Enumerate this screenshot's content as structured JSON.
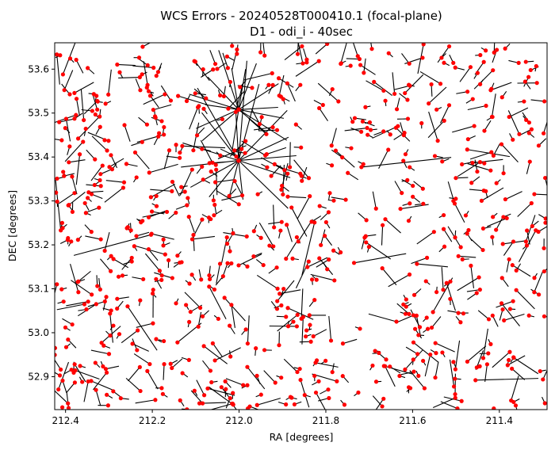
{
  "chart_data": {
    "type": "scatter",
    "title": "WCS Errors - 20240528T000410.1 (focal-plane)",
    "subtitle": "D1 - odi_i - 40sec",
    "xlabel": "RA [degrees]",
    "ylabel": "DEC [degrees]",
    "x_inverted": true,
    "xlim": [
      212.425,
      211.29
    ],
    "ylim": [
      52.825,
      53.66
    ],
    "x_ticks": [
      212.4,
      212.2,
      212.0,
      211.8,
      211.6,
      211.4
    ],
    "x_tick_labels": [
      "212.4",
      "212.2",
      "212.0",
      "211.8",
      "211.6",
      "211.4"
    ],
    "y_ticks": [
      52.9,
      53.0,
      53.1,
      53.2,
      53.3,
      53.4,
      53.5,
      53.6
    ],
    "y_tick_labels": [
      "52.9",
      "53.0",
      "53.1",
      "53.2",
      "53.3",
      "53.4",
      "53.5",
      "53.6"
    ],
    "grid": false,
    "legend": "none",
    "colors": {
      "points": "#ff0000",
      "vectors": "#000000"
    },
    "note_points": "each point = source position (red dot) with a black error vector drawn from it",
    "vectors": [
      {
        "ra": 212.001,
        "dec": 53.392,
        "dra": 0.085,
        "ddec": 0.109
      },
      {
        "ra": 212.001,
        "dec": 53.392,
        "dra": 0.068,
        "ddec": -0.083
      },
      {
        "ra": 212.001,
        "dec": 53.392,
        "dra": -0.114,
        "ddec": -0.109
      },
      {
        "ra": 212.001,
        "dec": 53.392,
        "dra": 0.129,
        "ddec": 0.04
      },
      {
        "ra": 212.001,
        "dec": 53.392,
        "dra": -0.133,
        "ddec": 0.011
      },
      {
        "ra": 212.001,
        "dec": 53.392,
        "dra": -0.047,
        "ddec": 0.174
      },
      {
        "ra": 212.001,
        "dec": 53.392,
        "dra": -0.01,
        "ddec": -0.089
      },
      {
        "ra": 212.001,
        "dec": 53.392,
        "dra": 0.111,
        "ddec": -0.061
      },
      {
        "ra": 212.001,
        "dec": 53.392,
        "dra": -0.119,
        "ddec": -0.039
      },
      {
        "ra": 212.001,
        "dec": 53.392,
        "dra": 0.007,
        "ddec": 0.119
      },
      {
        "ra": 212.001,
        "dec": 53.392,
        "dra": 0.133,
        "ddec": -0.015
      },
      {
        "ra": 212.001,
        "dec": 53.392,
        "dra": -0.019,
        "ddec": 0.227
      },
      {
        "ra": 212.001,
        "dec": 53.392,
        "dra": 0.095,
        "ddec": 0.165
      },
      {
        "ra": 212.001,
        "dec": 53.392,
        "dra": 0.021,
        "ddec": -0.08
      },
      {
        "ra": 212.001,
        "dec": 53.392,
        "dra": -0.115,
        "ddec": 0.053
      },
      {
        "ra": 212.001,
        "dec": 53.392,
        "dra": -0.112,
        "ddec": 0.114
      },
      {
        "ra": 212.001,
        "dec": 53.508,
        "dra": 0.046,
        "ddec": 0.135
      },
      {
        "ra": 212.001,
        "dec": 53.508,
        "dra": -0.091,
        "ddec": 0.005
      },
      {
        "ra": 212.001,
        "dec": 53.508,
        "dra": 0.098,
        "ddec": -0.043
      },
      {
        "ra": 212.001,
        "dec": 53.508,
        "dra": -0.111,
        "ddec": -0.07
      },
      {
        "ra": 212.001,
        "dec": 53.508,
        "dra": 0.071,
        "ddec": 0.074
      },
      {
        "ra": 212.001,
        "dec": 53.508,
        "dra": -0.041,
        "ddec": 0.105
      },
      {
        "ra": 212.001,
        "dec": 53.508,
        "dra": -0.092,
        "ddec": 0.059
      },
      {
        "ra": 212.001,
        "dec": 53.508,
        "dra": 0.084,
        "ddec": -0.071
      },
      {
        "ra": 212.001,
        "dec": 53.508,
        "dra": -0.063,
        "ddec": -0.052
      },
      {
        "ra": 212.001,
        "dec": 53.508,
        "dra": 0.015,
        "ddec": -0.094
      },
      {
        "ra": 212.001,
        "dec": 53.508,
        "dra": 0.114,
        "ddec": 0.035
      },
      {
        "ra": 212.001,
        "dec": 53.508,
        "dra": -0.016,
        "ddec": 0.092
      },
      {
        "ra": 212.001,
        "dec": 53.508,
        "dra": 0.016,
        "ddec": 0.094
      },
      {
        "ra": 212.001,
        "dec": 53.508,
        "dra": -0.104,
        "ddec": -0.02
      },
      {
        "ra": 212.001,
        "dec": 53.508,
        "dra": 0.077,
        "ddec": 0.011
      },
      {
        "ra": 212.131,
        "dec": 53.425,
        "dra": -0.099,
        "ddec": -0.004
      },
      {
        "ra": 211.718,
        "dec": 53.377,
        "dra": -0.207,
        "ddec": 0.022
      },
      {
        "ra": 211.826,
        "dec": 53.251,
        "dra": 0.029,
        "ddec": -0.12
      },
      {
        "ra": 211.735,
        "dec": 53.159,
        "dra": -0.12,
        "ddec": 0.021
      },
      {
        "ra": 212.203,
        "dec": 53.223,
        "dra": 0.178,
        "ddec": -0.047
      },
      {
        "ra": 212.257,
        "dec": 53.06,
        "dra": -0.068,
        "ddec": -0.1
      },
      {
        "ra": 211.455,
        "dec": 52.892,
        "dra": -0.145,
        "ddec": 0.004
      },
      {
        "ra": 211.474,
        "dec": 53.417,
        "dra": -0.098,
        "ddec": -0.016
      },
      {
        "ra": 211.316,
        "dec": 53.233,
        "dra": 0.039,
        "ddec": -0.072
      },
      {
        "ra": 212.411,
        "dec": 53.233,
        "dra": 0.012,
        "ddec": 0.115
      },
      {
        "ra": 212.406,
        "dec": 53.588,
        "dra": -0.029,
        "ddec": 0.074
      },
      {
        "ra": 211.553,
        "dec": 53.047,
        "dra": -0.045,
        "ddec": 0.078
      },
      {
        "ra": 212.069,
        "dec": 53.105,
        "dra": -0.039,
        "ddec": -0.074
      },
      {
        "ra": 211.598,
        "dec": 52.978,
        "dra": -0.057,
        "ddec": -0.045
      },
      {
        "ra": 212.358,
        "dec": 53.484,
        "dra": 0.006,
        "ddec": 0.071
      },
      {
        "ra": 211.542,
        "dec": 53.437,
        "dra": 0.021,
        "ddec": 0.066
      },
      {
        "ra": 212.211,
        "dec": 53.564,
        "dra": 0.009,
        "ddec": 0.054
      },
      {
        "ra": 211.395,
        "dec": 53.067,
        "dra": -0.042,
        "ddec": -0.052
      },
      {
        "ra": 211.879,
        "dec": 53.285,
        "dra": -0.035,
        "ddec": -0.066
      },
      {
        "ra": 211.628,
        "dec": 53.282,
        "dra": -0.065,
        "ddec": 0.01
      },
      {
        "ra": 212.142,
        "dec": 52.978,
        "dra": -0.055,
        "ddec": 0.044
      },
      {
        "ra": 211.981,
        "dec": 52.922,
        "dra": -0.04,
        "ddec": -0.05
      },
      {
        "ra": 211.354,
        "dec": 53.452,
        "dra": 0.025,
        "ddec": 0.054
      },
      {
        "ra": 212.317,
        "dec": 52.977,
        "dra": -0.044,
        "ddec": 0.038
      },
      {
        "ra": 211.853,
        "dec": 53.613,
        "dra": 0.014,
        "ddec": 0.063
      },
      {
        "ra": 212.028,
        "dec": 53.217,
        "dra": 0.012,
        "ddec": -0.058
      },
      {
        "ra": 211.447,
        "dec": 53.126,
        "dra": 0.05,
        "ddec": -0.03
      },
      {
        "ra": 211.912,
        "dec": 53.072,
        "dra": -0.039,
        "ddec": 0.047
      },
      {
        "ra": 212.267,
        "dec": 53.33,
        "dra": 0.043,
        "ddec": -0.033
      },
      {
        "ra": 211.788,
        "dec": 52.982,
        "dra": 0.005,
        "ddec": 0.056
      },
      {
        "ra": 212.095,
        "dec": 53.513,
        "dra": 0.02,
        "ddec": -0.05
      },
      {
        "ra": 211.503,
        "dec": 53.294,
        "dra": 0.015,
        "ddec": 0.05
      },
      {
        "ra": 211.689,
        "dec": 53.571,
        "dra": -0.042,
        "ddec": -0.031
      },
      {
        "ra": 212.183,
        "dec": 53.141,
        "dra": 0.033,
        "ddec": 0.039
      },
      {
        "ra": 211.937,
        "dec": 53.452,
        "dra": 0.041,
        "ddec": 0.036
      }
    ]
  }
}
